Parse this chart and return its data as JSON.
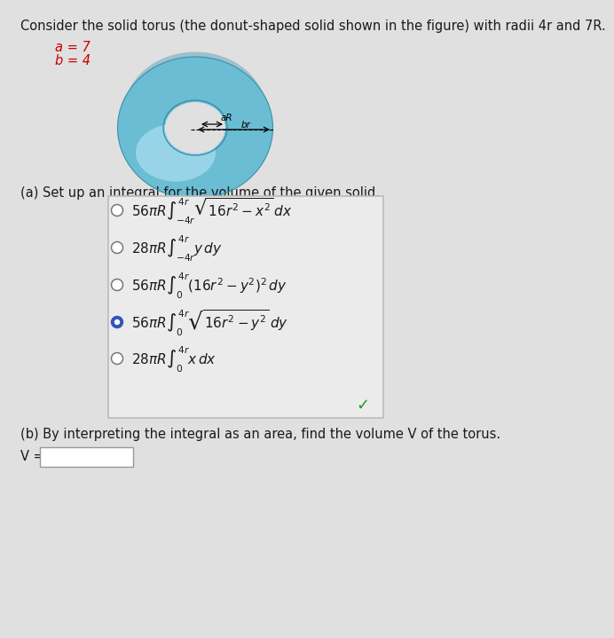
{
  "title": "Consider the solid torus (the donut-shaped solid shown in the figure) with radii 4r and 7R.",
  "a_label": "a = 7",
  "b_label": "b = 4",
  "part_a_text": "(a) Set up an integral for the volume of the given solid.",
  "part_b_text": "(b) By interpreting the integral as an area, find the volume V of the torus.",
  "v_label": "V =",
  "bg_color": "#e0e0e0",
  "options_selected": [
    false,
    false,
    false,
    true,
    false
  ],
  "torus_color": "#6bbdd4",
  "torus_highlight": "#a8ddef",
  "torus_shadow": "#4a9ab8",
  "torus_dark": "#3a8fa8",
  "font_size_title": 10.5,
  "font_size_labels": 10.5,
  "font_size_options": 11,
  "radio_selected_color": "#3355bb",
  "checkmark_color": "#229922"
}
